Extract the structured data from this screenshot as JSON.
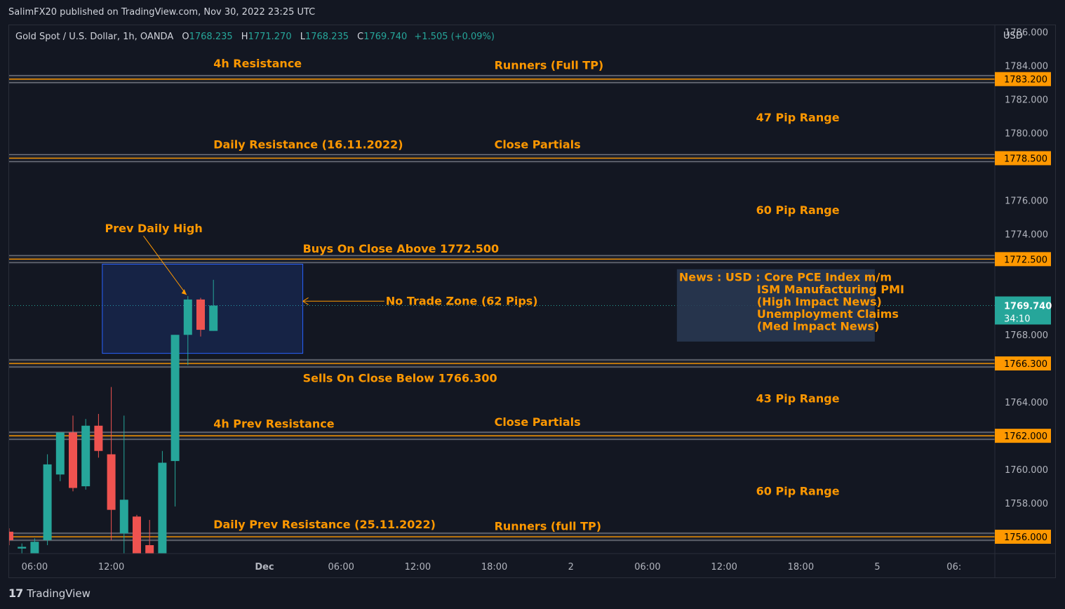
{
  "header": {
    "published_by": "SalimFX20 published on TradingView.com, Nov 30, 2022 23:25 UTC"
  },
  "symbol_bar": {
    "title": "Gold Spot / U.S. Dollar, 1h, OANDA",
    "open_label": "O",
    "open": "1768.235",
    "high_label": "H",
    "high": "1771.270",
    "low_label": "L",
    "low": "1768.235",
    "close_label": "C",
    "close": "1769.740",
    "change": "+1.505 (+0.09%)"
  },
  "footer": {
    "brand": "TradingView",
    "logo_icon": "tradingview-logo-icon"
  },
  "colors": {
    "background": "#131722",
    "up": "#26a69a",
    "down": "#ef5350",
    "annotation": "#ff9800",
    "level_line": "#787b86",
    "zone": "#1e2b4a"
  },
  "chart_data": {
    "type": "candlestick",
    "currency_label": "USD",
    "ylim": [
      1755,
      1786.4
    ],
    "y_ticks": [
      "1758.000",
      "1760.000",
      "1762.000",
      "1764.000",
      "1768.000",
      "1774.000",
      "1776.000",
      "1780.000",
      "1782.000",
      "1784.000",
      "1786.000"
    ],
    "x_ticks": [
      "06:00",
      "12:00",
      "Dec",
      "06:00",
      "12:00",
      "18:00",
      "2",
      "06:00",
      "12:00",
      "18:00",
      "5",
      "06:"
    ],
    "x_tick_time": [
      6,
      12,
      24,
      30,
      36,
      42,
      48,
      54,
      60,
      66,
      72,
      78
    ],
    "x_range_hours": [
      4.0,
      81.2
    ],
    "candles": [
      {
        "t": 4,
        "o": 1756.3,
        "h": 1756.5,
        "l": 1755.5,
        "c": 1755.8
      },
      {
        "t": 5,
        "o": 1755.3,
        "h": 1755.6,
        "l": 1754.7,
        "c": 1755.4
      },
      {
        "t": 6,
        "o": 1755.0,
        "h": 1755.9,
        "l": 1754.2,
        "c": 1755.7
      },
      {
        "t": 7,
        "o": 1755.8,
        "h": 1760.9,
        "l": 1755.5,
        "c": 1760.3
      },
      {
        "t": 8,
        "o": 1759.7,
        "h": 1762.0,
        "l": 1759.3,
        "c": 1762.2
      },
      {
        "t": 9,
        "o": 1762.2,
        "h": 1763.2,
        "l": 1758.7,
        "c": 1758.9
      },
      {
        "t": 10,
        "o": 1759.0,
        "h": 1763.0,
        "l": 1758.8,
        "c": 1762.6
      },
      {
        "t": 11,
        "o": 1762.6,
        "h": 1763.3,
        "l": 1760.7,
        "c": 1761.1
      },
      {
        "t": 12,
        "o": 1760.9,
        "h": 1764.9,
        "l": 1755.8,
        "c": 1757.6
      },
      {
        "t": 13,
        "o": 1756.2,
        "h": 1763.2,
        "l": 1755.0,
        "c": 1758.2
      },
      {
        "t": 14,
        "o": 1757.2,
        "h": 1757.3,
        "l": 1754.7,
        "c": 1755.0
      },
      {
        "t": 15,
        "o": 1755.5,
        "h": 1757.0,
        "l": 1754.2,
        "c": 1754.9
      },
      {
        "t": 16,
        "o": 1755.0,
        "h": 1761.1,
        "l": 1754.9,
        "c": 1760.4
      },
      {
        "t": 17,
        "o": 1760.5,
        "h": 1768.0,
        "l": 1757.8,
        "c": 1768.0
      },
      {
        "t": 18,
        "o": 1768.0,
        "h": 1770.3,
        "l": 1766.2,
        "c": 1770.1
      },
      {
        "t": 19,
        "o": 1770.1,
        "h": 1770.2,
        "l": 1767.9,
        "c": 1768.3
      },
      {
        "t": 20,
        "o": 1768.235,
        "h": 1771.27,
        "l": 1768.235,
        "c": 1769.74
      }
    ],
    "price_labels": [
      {
        "value": 1783.2,
        "label": "1783.200"
      },
      {
        "value": 1778.5,
        "label": "1778.500"
      },
      {
        "value": 1772.5,
        "label": "1772.500"
      },
      {
        "value": 1766.3,
        "label": "1766.300"
      },
      {
        "value": 1762.0,
        "label": "1762.000"
      },
      {
        "value": 1756.0,
        "label": "1756.000"
      }
    ],
    "current_price": {
      "value": 1769.74,
      "label": "1769.740",
      "countdown": "34:10"
    },
    "annotations": [
      {
        "text": "4h Resistance",
        "t": 20.0,
        "price": 1784.1
      },
      {
        "text": "Runners (Full TP)",
        "t": 42.0,
        "price": 1784.0
      },
      {
        "text": "47 Pip Range",
        "t": 62.5,
        "price": 1780.9
      },
      {
        "text": "Daily Resistance (16.11.2022)",
        "t": 20.0,
        "price": 1779.3
      },
      {
        "text": "Close Partials",
        "t": 42.0,
        "price": 1779.3
      },
      {
        "text": "60 Pip Range",
        "t": 62.5,
        "price": 1775.4
      },
      {
        "text": "Prev Daily High",
        "t": 11.5,
        "price": 1774.3
      },
      {
        "text": "Buys On Close Above 1772.500",
        "t": 27.0,
        "price": 1773.1
      },
      {
        "text": "No Trade Zone (62 Pips)",
        "t": 33.5,
        "price": 1770.0
      },
      {
        "text": "Sells On Close Below 1766.300",
        "t": 27.0,
        "price": 1765.4
      },
      {
        "text": "43 Pip Range",
        "t": 62.5,
        "price": 1764.2
      },
      {
        "text": "4h Prev Resistance",
        "t": 20.0,
        "price": 1762.7
      },
      {
        "text": "Close Partials",
        "t": 42.0,
        "price": 1762.8
      },
      {
        "text": "60 Pip Range",
        "t": 62.5,
        "price": 1758.7
      },
      {
        "text": "Daily Prev Resistance (25.11.2022)",
        "t": 20.0,
        "price": 1756.7
      },
      {
        "text": "Runners (full TP)",
        "t": 42.0,
        "price": 1756.6
      }
    ],
    "no_trade_zone": {
      "t_start": 11.3,
      "t_end": 27.0,
      "price_top": 1772.2,
      "price_bottom": 1766.9
    },
    "news_box": {
      "t_start": 56.3,
      "t_end": 71.8,
      "price_top": 1771.9,
      "price_bottom": 1767.6,
      "lines": [
        "News : USD : Core PCE Index m/m",
        "ISM Manufacturing PMI",
        "(High Impact News)",
        "Unemployment Claims",
        "(Med Impact News)"
      ]
    }
  }
}
